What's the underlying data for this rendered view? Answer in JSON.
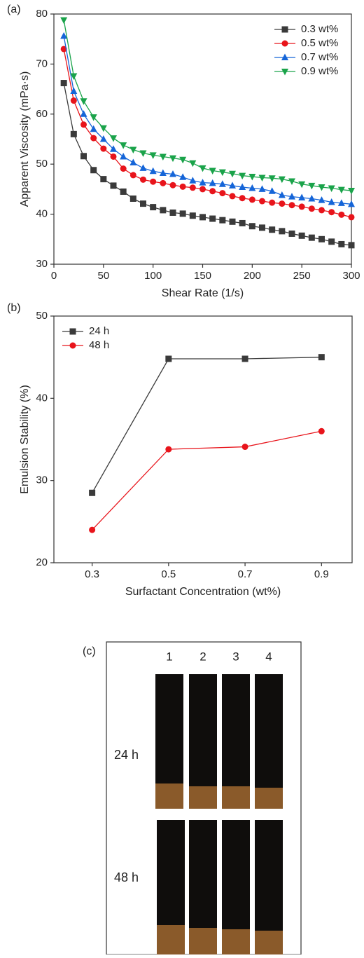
{
  "chart_data": [
    {
      "type": "line",
      "panel_label": "(a)",
      "x_label": "Shear Rate (1/s)",
      "y_label": "Apparent Viscosity (mPa·s)",
      "x": [
        10,
        20,
        30,
        40,
        50,
        60,
        70,
        80,
        90,
        100,
        110,
        120,
        130,
        140,
        150,
        160,
        170,
        180,
        190,
        200,
        210,
        220,
        230,
        240,
        250,
        260,
        270,
        280,
        290,
        300
      ],
      "xlim": [
        0,
        300
      ],
      "xticks": [
        0,
        50,
        100,
        150,
        200,
        250,
        300
      ],
      "ylim": [
        30,
        80
      ],
      "yticks": [
        30,
        40,
        50,
        60,
        70,
        80
      ],
      "legend": "top-right",
      "series": [
        {
          "name": "0.3 wt%",
          "color": "#3a3a3a",
          "marker": "square",
          "values": [
            66.2,
            56,
            51.6,
            48.8,
            47,
            45.7,
            44.5,
            43.1,
            42.1,
            41.4,
            40.8,
            40.3,
            40.1,
            39.7,
            39.4,
            39.1,
            38.8,
            38.5,
            38.2,
            37.6,
            37.3,
            36.9,
            36.6,
            36.1,
            35.7,
            35.3,
            35.0,
            34.5,
            34.0,
            33.8
          ]
        },
        {
          "name": "0.5 wt%",
          "color": "#e8141b",
          "marker": "circle",
          "values": [
            73,
            62.7,
            57.9,
            55.2,
            53.1,
            51.5,
            49.1,
            47.8,
            46.9,
            46.5,
            46.2,
            45.8,
            45.5,
            45.3,
            45,
            44.6,
            44.2,
            43.6,
            43.2,
            42.9,
            42.6,
            42.3,
            42.1,
            41.8,
            41.5,
            41.1,
            40.8,
            40.4,
            39.9,
            39.4
          ]
        },
        {
          "name": "0.7 wt%",
          "color": "#1565d8",
          "marker": "triangle-up",
          "values": [
            75.6,
            64.6,
            60,
            57,
            55,
            53,
            51.5,
            50.3,
            49.2,
            48.6,
            48.2,
            48,
            47.4,
            46.7,
            46.3,
            46.2,
            46,
            45.7,
            45.4,
            45.2,
            45,
            44.6,
            43.8,
            43.5,
            43.3,
            43.1,
            42.8,
            42.4,
            42.2,
            42.0
          ]
        },
        {
          "name": "0.9 wt%",
          "color": "#1aa34a",
          "marker": "triangle-down",
          "values": [
            78.8,
            67.6,
            62.6,
            59.4,
            57.2,
            55.2,
            53.8,
            52.9,
            52.2,
            51.8,
            51.5,
            51.2,
            50.9,
            50.2,
            49.2,
            48.7,
            48.4,
            48.1,
            47.7,
            47.5,
            47.3,
            47.2,
            47.0,
            46.6,
            46.0,
            45.7,
            45.4,
            45.2,
            44.9,
            44.7
          ]
        }
      ]
    },
    {
      "type": "line",
      "panel_label": "(b)",
      "x_label": "Surfactant Concentration (wt%)",
      "y_label": "Emulsion Stability (%)",
      "x": [
        0.3,
        0.5,
        0.7,
        0.9
      ],
      "xlim": [
        0.2,
        0.98
      ],
      "xticks": [
        0.3,
        0.5,
        0.7,
        0.9
      ],
      "ylim": [
        20,
        50
      ],
      "yticks": [
        20,
        30,
        40,
        50
      ],
      "legend": "top-left",
      "series": [
        {
          "name": "24 h",
          "color": "#3a3a3a",
          "marker": "square",
          "values": [
            28.5,
            44.8,
            44.8,
            45.0
          ]
        },
        {
          "name": "48 h",
          "color": "#e8141b",
          "marker": "circle",
          "values": [
            24.0,
            33.8,
            34.1,
            36.0
          ]
        }
      ]
    }
  ],
  "photo_panel": {
    "label": "(c)",
    "tube_labels": [
      "1",
      "2",
      "3",
      "4"
    ],
    "row_labels": [
      "24 h",
      "48 h"
    ]
  }
}
